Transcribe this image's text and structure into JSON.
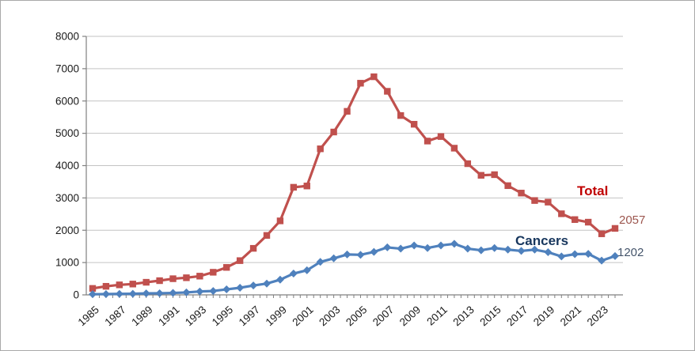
{
  "chart_data": {
    "type": "line",
    "title": "",
    "x": [
      1985,
      1986,
      1987,
      1988,
      1989,
      1990,
      1991,
      1992,
      1993,
      1994,
      1995,
      1996,
      1997,
      1998,
      1999,
      2000,
      2001,
      2002,
      2003,
      2004,
      2005,
      2006,
      2007,
      2008,
      2009,
      2010,
      2011,
      2012,
      2013,
      2014,
      2015,
      2016,
      2017,
      2018,
      2019,
      2020,
      2021,
      2022,
      2023,
      2024
    ],
    "xtick_labels": [
      "1985",
      "1987",
      "1989",
      "1991",
      "1993",
      "1995",
      "1997",
      "1999",
      "2001",
      "2003",
      "2005",
      "2007",
      "2009",
      "2011",
      "2013",
      "2015",
      "2017",
      "2019",
      "2021",
      "2023"
    ],
    "ylim": [
      0,
      8000
    ],
    "ytick_step": 1000,
    "ytick_labels": [
      "0",
      "1000",
      "2000",
      "3000",
      "4000",
      "5000",
      "6000",
      "7000",
      "8000"
    ],
    "grid": true,
    "legend_position": "inline-labels-near-lines",
    "series": [
      {
        "name": "Total",
        "color": "#C0504D",
        "marker": "square",
        "values": [
          200,
          265,
          310,
          335,
          390,
          440,
          500,
          530,
          580,
          700,
          850,
          1060,
          1440,
          1840,
          2290,
          3330,
          3370,
          4520,
          5040,
          5680,
          6550,
          6750,
          6300,
          5550,
          5280,
          4760,
          4900,
          4540,
          4060,
          3700,
          3720,
          3380,
          3150,
          2920,
          2870,
          2510,
          2330,
          2250,
          1890,
          2057
        ]
      },
      {
        "name": "Cancers",
        "color": "#4F81BD",
        "marker": "diamond",
        "values": [
          20,
          25,
          30,
          35,
          45,
          50,
          60,
          75,
          105,
          120,
          170,
          220,
          290,
          350,
          470,
          660,
          760,
          1020,
          1130,
          1250,
          1240,
          1330,
          1470,
          1430,
          1530,
          1450,
          1530,
          1580,
          1430,
          1380,
          1450,
          1400,
          1360,
          1400,
          1320,
          1190,
          1260,
          1270,
          1060,
          1202
        ]
      }
    ],
    "annotations": [
      {
        "id": "total-label",
        "text": "Total",
        "color": "#C00000"
      },
      {
        "id": "cancers-label",
        "text": "Cancers",
        "color": "#17365D"
      },
      {
        "id": "total-end-value",
        "text": "2057",
        "color": "#9C564E"
      },
      {
        "id": "cancers-end-value",
        "text": "1202",
        "color": "#44546A"
      }
    ],
    "colors": {
      "gridline": "#C3C3C3",
      "axis": "#808080",
      "tick_label": "#1A1A1A"
    }
  }
}
